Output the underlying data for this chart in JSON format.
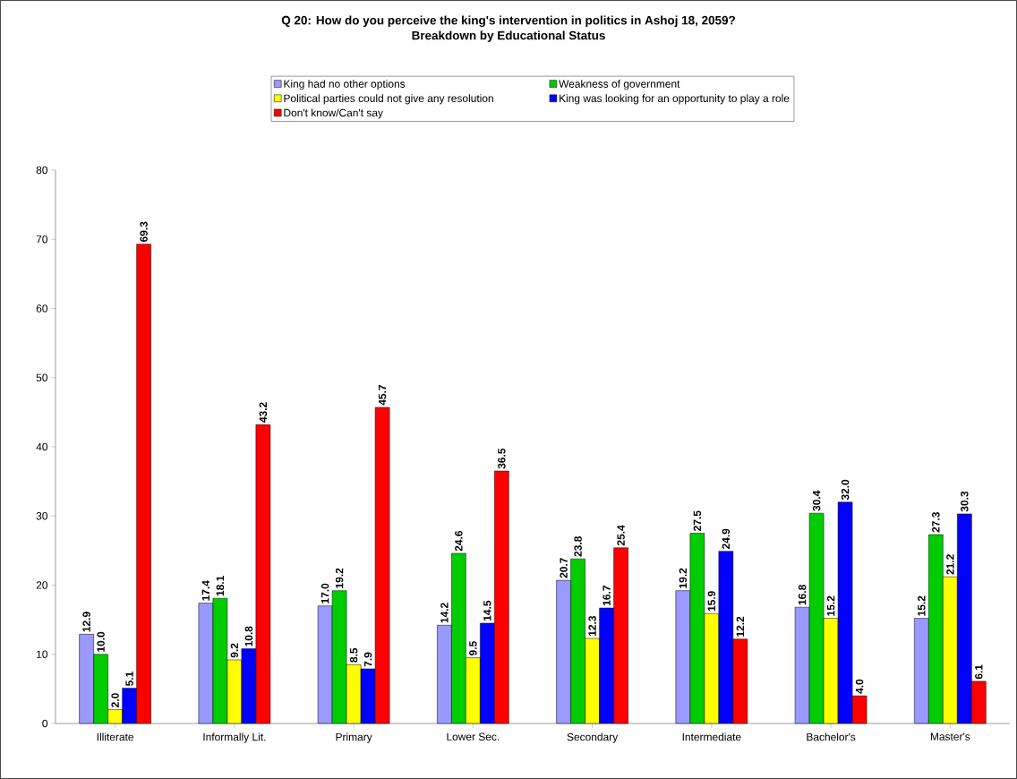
{
  "chart_data": {
    "type": "bar",
    "title": "Q 20: How do you perceive the king's intervention in politics in Ashoj 18, 2059?",
    "subtitle": "Breakdown by Educational Status",
    "categories": [
      "Illiterate",
      "Informally Lit.",
      "Primary",
      "Lower Sec.",
      "Secondary",
      "Intermediate",
      "Bachelor's",
      "Master's"
    ],
    "series": [
      {
        "name": "King had no other options",
        "color": "#9999ff",
        "values": [
          12.9,
          17.4,
          17.0,
          14.2,
          20.7,
          19.2,
          16.8,
          15.2
        ],
        "value_labels": [
          "12.9",
          "17.4",
          "17.0",
          "14.2",
          "20.7",
          "19.2",
          "16.8",
          "15.2"
        ]
      },
      {
        "name": "Weakness of government",
        "color": "#00cc00",
        "values": [
          10.0,
          18.1,
          19.2,
          24.6,
          23.8,
          27.5,
          30.4,
          27.3
        ],
        "value_labels": [
          "10.0",
          "18.1",
          "19.2",
          "24.6",
          "23.8",
          "27.5",
          "30.4",
          "27.3"
        ]
      },
      {
        "name": "Political parties could not give any resolution",
        "color": "#ffff00",
        "values": [
          2.0,
          9.2,
          8.5,
          9.5,
          12.3,
          15.9,
          15.2,
          21.2
        ],
        "value_labels": [
          "2.0",
          "9.2",
          "8.5",
          "9.5",
          "12.3",
          "15.9",
          "15.2",
          "21.2"
        ]
      },
      {
        "name": "King was looking for an opportunity to play a role",
        "color": "#0000ff",
        "values": [
          5.1,
          10.8,
          7.9,
          14.5,
          16.7,
          24.9,
          32.0,
          30.3
        ],
        "value_labels": [
          "5.1",
          "10.8",
          "7.9",
          "14.5",
          "16.7",
          "24.9",
          "32.0",
          "30.3"
        ]
      },
      {
        "name": "Don't know/Can't say",
        "color": "#ff0000",
        "values": [
          69.3,
          43.2,
          45.7,
          36.5,
          25.4,
          12.2,
          4.0,
          6.1
        ],
        "value_labels": [
          "69.3",
          "43.2",
          "45.7",
          "36.5",
          "25.4",
          "12.2",
          "4.0",
          "6.1"
        ]
      }
    ],
    "ylim": [
      0,
      80
    ],
    "yticks": [
      0,
      10,
      20,
      30,
      40,
      50,
      60,
      70,
      80
    ],
    "legend": "top"
  }
}
